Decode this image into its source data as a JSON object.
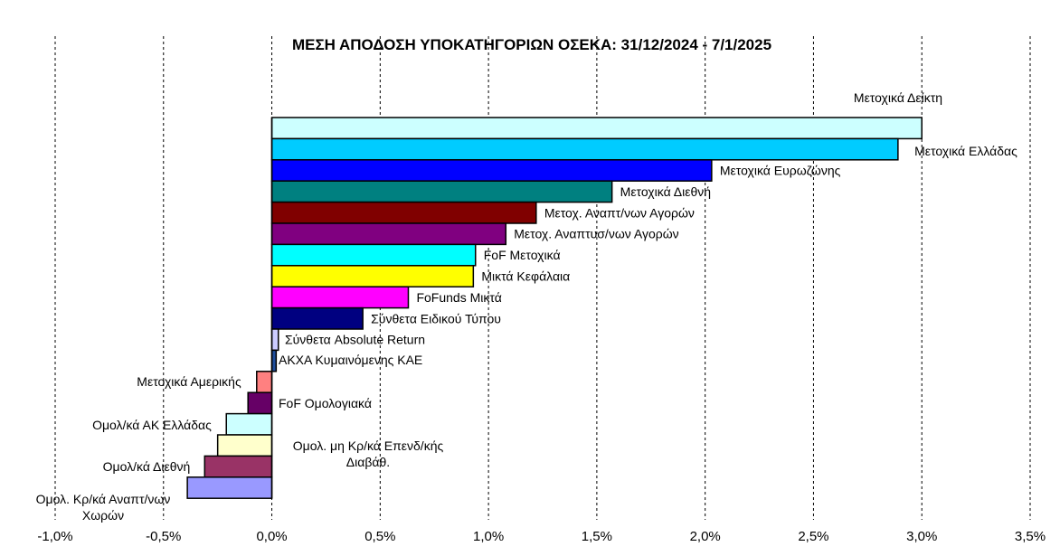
{
  "chart_data": {
    "type": "bar",
    "orientation": "horizontal",
    "title": "ΜΕΣΗ ΑΠΟΔΟΣΗ ΥΠΟΚΑΤΗΓΟΡΙΩΝ ΟΣΕΚΑ: 31/12/2024 - 7/1/2025",
    "xlim": [
      -1.0,
      3.5
    ],
    "x_ticks": [
      -1.0,
      -0.5,
      0.0,
      0.5,
      1.0,
      1.5,
      2.0,
      2.5,
      3.0,
      3.5
    ],
    "x_tick_labels": [
      "-1,0%",
      "-0,5%",
      "0,0%",
      "0,5%",
      "1,0%",
      "1,5%",
      "2,0%",
      "2,5%",
      "3,0%",
      "3,5%"
    ],
    "grid": "vertical dashed",
    "categories": [
      "Μετοχικά Δείκτη",
      "Μετοχικά Ελλάδας",
      "Μετοχικά Ευρωζώνης",
      "Μετοχικά Διεθνή",
      "Μετοχ. Αναπτ/νων Αγορών",
      "Μετοχ. Αναπτυσ/νων Αγορών",
      "FoF Μετοχικά",
      "Μικτά Κεφάλαια",
      "FoFunds Μικτά",
      "Σύνθετα Ειδικού Τύπου",
      "Σύνθετα Absolute Return",
      "ΑΚΧΑ Κυμαινόμενης ΚΑΕ",
      "Μετοχικά Αμερικής",
      "FoF Ομολογιακά",
      "Ομολ/κά ΑΚ Ελλάδας",
      "Ομολ. μη Κρ/κά Επενδ/κής Διαβάθ.",
      "Ομολ/κά Διεθνή",
      "Ομολ. Κρ/κά Αναπτ/νων Χωρών"
    ],
    "values": [
      3.0,
      2.89,
      2.03,
      1.57,
      1.22,
      1.08,
      0.94,
      0.93,
      0.63,
      0.42,
      0.03,
      0.02,
      -0.07,
      -0.11,
      -0.21,
      -0.25,
      -0.31,
      -0.39
    ],
    "colors": [
      "#ccffff",
      "#00ccff",
      "#0000ff",
      "#008080",
      "#800000",
      "#800080",
      "#00ffff",
      "#ffff00",
      "#ff00ff",
      "#000080",
      "#ccccff",
      "#1f4e9c",
      "#ff8080",
      "#660066",
      "#ccffff",
      "#ffffcc",
      "#993366",
      "#9999ff"
    ],
    "labels_display": [
      [
        "Μετοχικά Δείκτη"
      ],
      [
        "Μετοχικά Ελλάδας"
      ],
      [
        "Μετοχικά Ευρωζώνης"
      ],
      [
        "Μετοχικά Διεθνή"
      ],
      [
        "Μετοχ. Αναπτ/νων Αγορών"
      ],
      [
        "Μετοχ. Αναπτυσ/νων Αγορών"
      ],
      [
        "FoF Μετοχικά"
      ],
      [
        "Μικτά Κεφάλαια"
      ],
      [
        "FoFunds Μικτά"
      ],
      [
        "Σύνθετα Ειδικού Τύπου"
      ],
      [
        "Σύνθετα Absolute Return"
      ],
      [
        "ΑΚΧΑ Κυμαινόμενης ΚΑΕ"
      ],
      [
        "Μετοχικά Αμερικής"
      ],
      [
        "FoF Ομολογιακά"
      ],
      [
        "Ομολ/κά ΑΚ Ελλάδας"
      ],
      [
        "Ομολ. μη Κρ/κά Επενδ/κής",
        "Διαβάθ."
      ],
      [
        "Ομολ/κά Διεθνή"
      ],
      [
        "Ομολ. Κρ/κά Αναπτ/νων",
        "Χωρών"
      ]
    ]
  }
}
